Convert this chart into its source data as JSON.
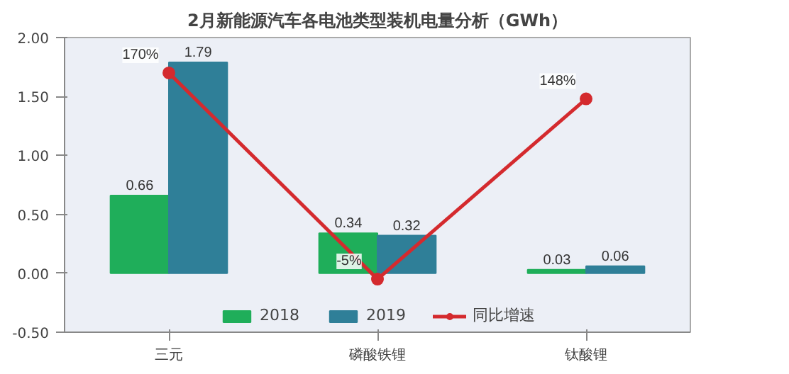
{
  "chart_data": {
    "type": "bar",
    "title": "2月新能源汽车各电池类型装机电量分析（GWh）",
    "categories": [
      "三元",
      "磷酸铁锂",
      "钛酸锂"
    ],
    "series": [
      {
        "name": "2018",
        "color": "#1fae5a",
        "values": [
          0.66,
          0.34,
          0.03
        ],
        "value_labels": [
          "0.66",
          "0.34",
          "0.03"
        ]
      },
      {
        "name": "2019",
        "color": "#2f7f98",
        "values": [
          1.79,
          0.32,
          0.06
        ],
        "value_labels": [
          "1.79",
          "0.32",
          "0.06"
        ]
      },
      {
        "name": "同比增速",
        "type": "line",
        "axis": "y2",
        "color": "#d42a2e",
        "marker": "circle",
        "values": [
          170,
          -5,
          148
        ],
        "value_labels": [
          "170%",
          "-5%",
          "148%"
        ]
      }
    ],
    "ylim": [
      -0.5,
      2.0
    ],
    "yticks": [
      {
        "value": -0.5,
        "label": "-0.50"
      },
      {
        "value": 0,
        "label": "0.00"
      },
      {
        "value": 0.5,
        "label": "0.50"
      },
      {
        "value": 1.0,
        "label": "1.00"
      },
      {
        "value": 1.5,
        "label": "1.50"
      },
      {
        "value": 2.0,
        "label": "2.00"
      }
    ],
    "y2lim": [
      -50,
      200
    ],
    "grid": false,
    "legend": "bottom"
  }
}
